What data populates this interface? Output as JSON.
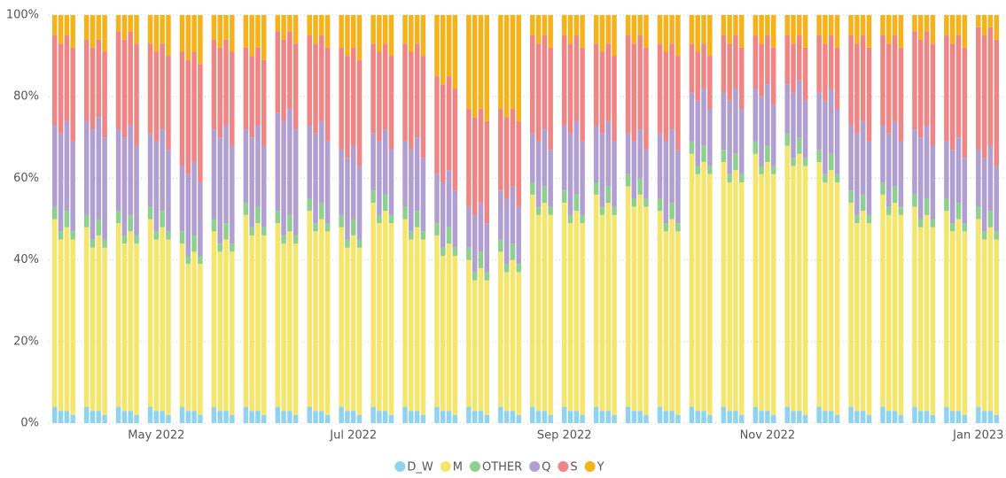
{
  "chart_data": {
    "type": "stacked-bar",
    "categories": [
      null,
      null,
      null,
      null,
      null,
      null,
      null,
      null,
      null,
      null,
      null,
      null,
      null,
      "May 2022",
      null,
      null,
      null,
      null,
      null,
      null,
      null,
      null,
      null,
      null,
      null,
      null,
      null,
      null,
      null,
      null,
      null,
      null,
      null,
      null,
      null,
      null,
      null,
      null,
      "Jul 2022",
      null,
      null,
      null,
      null,
      null,
      null,
      null,
      null,
      null,
      null,
      null,
      null,
      null,
      null,
      null,
      null,
      null,
      null,
      null,
      null,
      null,
      null,
      null,
      null,
      null,
      "Sep 2022",
      null,
      null,
      null,
      null,
      null,
      null,
      null,
      null,
      null,
      null,
      null,
      null,
      null,
      null,
      null,
      null,
      null,
      null,
      null,
      null,
      null,
      null,
      null,
      null,
      null,
      "Nov 2022",
      null,
      null,
      null,
      null,
      null,
      null,
      null,
      null,
      null,
      null,
      null,
      null,
      null,
      null,
      null,
      null,
      null,
      null,
      null,
      null,
      null,
      null,
      null,
      null,
      null,
      "Jan 2023",
      null,
      null,
      null
    ],
    "series": [
      {
        "name": "D_W",
        "color": "#8fd3f0",
        "values": [
          4,
          3,
          3,
          2,
          4,
          3,
          3,
          2,
          4,
          3,
          3,
          2,
          4,
          3,
          3,
          2,
          4,
          3,
          3,
          2,
          4,
          3,
          3,
          2,
          4,
          3,
          3,
          2,
          4,
          3,
          3,
          2,
          4,
          3,
          3,
          2,
          4,
          3,
          3,
          2,
          4,
          3,
          3,
          2,
          4,
          3,
          3,
          2,
          4,
          3,
          3,
          2,
          4,
          3,
          3,
          2,
          4,
          3,
          3,
          2,
          4,
          3,
          3,
          2,
          4,
          3,
          3,
          2,
          4,
          3,
          3,
          2,
          4,
          3,
          3,
          2,
          4,
          3,
          3,
          2,
          4,
          3,
          3,
          2,
          4,
          3,
          3,
          2,
          4,
          3,
          3,
          2,
          4,
          3,
          3,
          2,
          4,
          3,
          3,
          2,
          4,
          3,
          3,
          2,
          4,
          3,
          3,
          2,
          4,
          3,
          3,
          2,
          4,
          3,
          3,
          2,
          4,
          3,
          3,
          2
        ]
      },
      {
        "name": "M",
        "color": "#f5e56b",
        "values": [
          46,
          42,
          45,
          43,
          44,
          40,
          43,
          41,
          45,
          41,
          44,
          42,
          46,
          42,
          45,
          43,
          40,
          36,
          39,
          37,
          43,
          39,
          42,
          40,
          47,
          43,
          46,
          44,
          45,
          41,
          44,
          42,
          48,
          44,
          47,
          45,
          44,
          40,
          43,
          41,
          50,
          46,
          49,
          47,
          46,
          42,
          45,
          43,
          42,
          38,
          41,
          39,
          36,
          32,
          35,
          33,
          38,
          34,
          37,
          35,
          52,
          48,
          51,
          49,
          50,
          46,
          49,
          47,
          52,
          48,
          51,
          49,
          54,
          50,
          53,
          51,
          48,
          44,
          47,
          45,
          62,
          58,
          61,
          59,
          60,
          56,
          59,
          57,
          62,
          58,
          61,
          59,
          64,
          60,
          63,
          61,
          60,
          56,
          59,
          57,
          50,
          46,
          49,
          47,
          52,
          48,
          51,
          49,
          49,
          45,
          48,
          46,
          48,
          44,
          47,
          45,
          46,
          42,
          45,
          43
        ]
      },
      {
        "name": "OTHER",
        "color": "#8fcf8f",
        "values": [
          3,
          2,
          4,
          2,
          3,
          2,
          4,
          2,
          3,
          2,
          4,
          2,
          3,
          2,
          4,
          2,
          3,
          2,
          4,
          2,
          3,
          2,
          4,
          2,
          3,
          2,
          4,
          2,
          3,
          2,
          4,
          2,
          3,
          2,
          4,
          2,
          3,
          2,
          4,
          2,
          3,
          2,
          4,
          2,
          3,
          2,
          4,
          2,
          3,
          2,
          4,
          2,
          3,
          2,
          4,
          2,
          3,
          2,
          4,
          2,
          3,
          2,
          4,
          2,
          3,
          2,
          4,
          2,
          3,
          2,
          4,
          2,
          3,
          2,
          4,
          2,
          3,
          2,
          4,
          2,
          3,
          2,
          4,
          2,
          3,
          2,
          4,
          2,
          3,
          2,
          4,
          2,
          3,
          2,
          4,
          2,
          3,
          2,
          4,
          2,
          3,
          2,
          4,
          2,
          3,
          2,
          4,
          2,
          3,
          2,
          4,
          2,
          3,
          2,
          4,
          2,
          3,
          2,
          4,
          2
        ]
      },
      {
        "name": "Q",
        "color": "#b09fd0",
        "values": [
          20,
          24,
          22,
          22,
          23,
          27,
          25,
          25,
          20,
          24,
          22,
          22,
          18,
          22,
          20,
          20,
          16,
          20,
          18,
          18,
          22,
          26,
          24,
          24,
          18,
          22,
          20,
          20,
          24,
          28,
          26,
          26,
          18,
          22,
          20,
          20,
          16,
          20,
          18,
          18,
          14,
          18,
          16,
          16,
          16,
          20,
          18,
          18,
          12,
          16,
          14,
          14,
          10,
          14,
          12,
          12,
          12,
          16,
          14,
          14,
          12,
          16,
          14,
          14,
          16,
          20,
          18,
          18,
          14,
          18,
          16,
          16,
          10,
          14,
          12,
          12,
          16,
          20,
          18,
          18,
          12,
          16,
          14,
          14,
          14,
          18,
          16,
          16,
          13,
          17,
          15,
          15,
          12,
          16,
          14,
          14,
          14,
          18,
          16,
          16,
          16,
          20,
          18,
          18,
          14,
          18,
          16,
          16,
          16,
          20,
          18,
          18,
          14,
          18,
          16,
          16,
          14,
          18,
          16,
          16
        ]
      },
      {
        "name": "S",
        "color": "#f08585",
        "values": [
          22,
          22,
          21,
          23,
          20,
          20,
          19,
          21,
          24,
          24,
          23,
          25,
          22,
          22,
          21,
          23,
          28,
          28,
          27,
          29,
          22,
          22,
          21,
          23,
          20,
          20,
          19,
          21,
          20,
          20,
          19,
          21,
          22,
          22,
          21,
          23,
          25,
          25,
          24,
          26,
          22,
          22,
          21,
          23,
          24,
          24,
          23,
          25,
          24,
          24,
          23,
          25,
          24,
          24,
          23,
          25,
          20,
          20,
          19,
          21,
          24,
          24,
          23,
          25,
          22,
          22,
          21,
          23,
          20,
          20,
          19,
          21,
          24,
          24,
          23,
          25,
          22,
          22,
          21,
          23,
          12,
          12,
          11,
          13,
          14,
          14,
          13,
          15,
          13,
          13,
          12,
          14,
          12,
          12,
          11,
          13,
          14,
          14,
          13,
          15,
          22,
          22,
          21,
          23,
          22,
          22,
          21,
          23,
          24,
          24,
          23,
          25,
          26,
          26,
          25,
          27,
          30,
          30,
          29,
          31
        ]
      },
      {
        "name": "Y",
        "color": "#f5b21a",
        "values": [
          5,
          7,
          5,
          8,
          6,
          8,
          6,
          9,
          4,
          6,
          4,
          7,
          7,
          9,
          7,
          10,
          9,
          11,
          9,
          12,
          6,
          8,
          6,
          9,
          8,
          10,
          8,
          11,
          4,
          6,
          4,
          7,
          5,
          7,
          5,
          8,
          8,
          10,
          8,
          11,
          7,
          9,
          7,
          10,
          7,
          9,
          7,
          10,
          15,
          17,
          15,
          18,
          23,
          25,
          23,
          26,
          23,
          25,
          23,
          26,
          5,
          7,
          5,
          8,
          5,
          7,
          5,
          8,
          7,
          9,
          7,
          10,
          5,
          7,
          5,
          8,
          7,
          9,
          7,
          10,
          7,
          9,
          7,
          10,
          5,
          7,
          5,
          8,
          5,
          7,
          5,
          8,
          5,
          7,
          5,
          8,
          5,
          7,
          5,
          8,
          5,
          7,
          5,
          8,
          5,
          7,
          5,
          8,
          4,
          6,
          4,
          7,
          5,
          7,
          5,
          8,
          3,
          5,
          3,
          6
        ]
      }
    ],
    "ylim": [
      0,
      100
    ],
    "yticks": [
      {
        "value": 0,
        "label": "0%"
      },
      {
        "value": 20,
        "label": "20%"
      },
      {
        "value": 40,
        "label": "40%"
      },
      {
        "value": 60,
        "label": "60%"
      },
      {
        "value": 80,
        "label": "80%"
      },
      {
        "value": 100,
        "label": "100%"
      }
    ],
    "grid": true
  }
}
